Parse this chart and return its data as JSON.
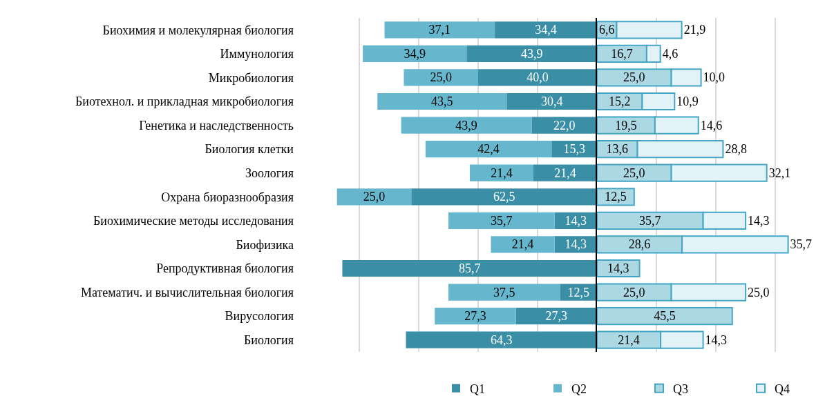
{
  "chart_data": [
    {
      "type": "bar",
      "orientation": "horizontal",
      "stacked": true,
      "categories": [
        "Биохимия и молекулярная биология",
        "Иммунология",
        "Микробиология",
        "Биотехнол. и прикладная микробиология",
        "Генетика и наследственность",
        "Биология клетки",
        "Зоология",
        "Охрана биоразнообразия",
        "Биохимические методы исследования",
        "Биофизика",
        "Репродуктивная биология",
        "Математич. и вычислительная биология",
        "Вирусология",
        "Биология"
      ],
      "series": [
        {
          "name": "Q1",
          "color": "#3a8fa6",
          "values": [
            34.4,
            43.9,
            40.0,
            30.4,
            22.0,
            15.3,
            21.4,
            62.5,
            14.3,
            14.3,
            85.7,
            12.5,
            27.3,
            64.3
          ],
          "value_labels": [
            "34,4",
            "43,9",
            "40,0",
            "30,4",
            "22,0",
            "15,3",
            "21,4",
            "62,5",
            "14,3",
            "14,3",
            "85,7",
            "12,5",
            "27,3",
            "64,3"
          ]
        },
        {
          "name": "Q2",
          "color": "#66b7cd",
          "values": [
            37.1,
            34.9,
            25.0,
            43.5,
            43.9,
            42.4,
            21.4,
            25.0,
            35.7,
            21.4,
            null,
            37.5,
            27.3,
            null
          ],
          "value_labels": [
            "37,1",
            "34,9",
            "25,0",
            "43,5",
            "43,9",
            "42,4",
            "21,4",
            "25,0",
            "35,7",
            "21,4",
            null,
            "37,5",
            "27,3",
            null
          ]
        }
      ],
      "tick_labels": "y",
      "grid": "x",
      "legend": "bottom"
    },
    {
      "type": "bar",
      "orientation": "horizontal",
      "stacked": true,
      "categories": [
        null,
        null,
        null,
        null,
        null,
        null,
        null,
        null,
        null,
        null,
        null,
        null,
        null,
        null
      ],
      "series": [
        {
          "name": "Q3",
          "color": "#acd8e4",
          "values": [
            6.6,
            16.7,
            25.0,
            15.2,
            19.5,
            13.6,
            25.0,
            12.5,
            35.7,
            28.6,
            14.3,
            25.0,
            45.5,
            21.4
          ],
          "value_labels": [
            "6,6",
            "16,7",
            "25,0",
            "15,2",
            "19,5",
            "13,6",
            "25,0",
            "12,5",
            "35,7",
            "28,6",
            "14,3",
            "25,0",
            "45,5",
            "21,4"
          ]
        },
        {
          "name": "Q4",
          "color": "#e2f2f6",
          "values": [
            21.9,
            4.6,
            10.0,
            10.9,
            14.6,
            28.8,
            32.1,
            null,
            14.3,
            35.7,
            null,
            25.0,
            null,
            14.3
          ],
          "value_labels": [
            "21,9",
            "4,6",
            "10,0",
            "10,9",
            "14,6",
            "28,8",
            "32,1",
            null,
            "14,3",
            "35,7",
            null,
            "25,0",
            null,
            "14,3"
          ]
        }
      ],
      "tick_labels": false,
      "grid": "x",
      "legend": "bottom"
    }
  ]
}
